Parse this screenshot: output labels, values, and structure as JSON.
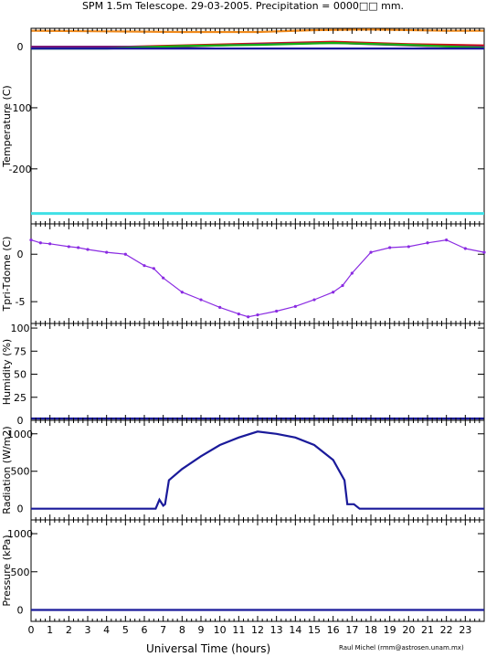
{
  "title": "SPM 1.5m Telescope. 29-03-2005. Precipitation = 0000□□ mm.",
  "xlabel": "Universal Time (hours)",
  "credit": "Raul Michel (rmm@astrosen.unam.mx)",
  "chart_data": [
    {
      "type": "line",
      "ylabel": "Temperature (C)",
      "yticks": [
        0,
        -100,
        -200
      ],
      "ylim": [
        -290,
        30
      ],
      "series": [
        {
          "color": "#f08a1c",
          "x": [
            0,
            4,
            8,
            12,
            15,
            18,
            22,
            24
          ],
          "values": [
            26,
            25,
            24,
            24,
            27,
            28,
            26,
            26
          ]
        },
        {
          "color": "#d01010",
          "x": [
            0,
            4,
            8,
            12,
            16,
            20,
            24
          ],
          "values": [
            -1,
            -1,
            2,
            5,
            8,
            4,
            2
          ]
        },
        {
          "color": "#7a1a7a",
          "x": [
            0,
            8,
            12,
            16,
            21,
            24
          ],
          "values": [
            0,
            0,
            4,
            6,
            1,
            0
          ]
        },
        {
          "color": "#14b014",
          "x": [
            0,
            4,
            8,
            12,
            16,
            20,
            24
          ],
          "values": [
            -3,
            -3,
            1,
            3,
            6,
            3,
            -2
          ]
        },
        {
          "color": "#1a1a9a",
          "x": [
            0,
            24
          ],
          "values": [
            -3,
            -3
          ]
        },
        {
          "color": "#40e0e6",
          "x": [
            0,
            24
          ],
          "values": [
            -273,
            -273
          ]
        }
      ]
    },
    {
      "type": "scatter",
      "ylabel": "Tpri-Tdome (C)",
      "yticks": [
        0,
        -5
      ],
      "ylim": [
        -7.3,
        3.2
      ],
      "series": [
        {
          "color": "#8a2be2",
          "x": [
            0,
            0.5,
            1,
            2,
            2.5,
            3,
            4,
            5,
            6,
            6.5,
            7,
            8,
            9,
            10,
            11,
            11.5,
            12,
            13,
            14,
            15,
            16,
            16.5,
            17,
            18,
            19,
            20,
            21,
            22,
            23,
            24
          ],
          "values": [
            1.5,
            1.2,
            1.1,
            0.8,
            0.7,
            0.5,
            0.2,
            0,
            -1.2,
            -1.5,
            -2.5,
            -4.0,
            -4.8,
            -5.6,
            -6.3,
            -6.6,
            -6.4,
            -6.0,
            -5.5,
            -4.8,
            -4.0,
            -3.3,
            -2.0,
            0.2,
            0.7,
            0.8,
            1.2,
            1.5,
            0.6,
            0.2
          ]
        }
      ]
    },
    {
      "type": "line",
      "ylabel": "Humidity (%)",
      "yticks": [
        0,
        25,
        50,
        75,
        100
      ],
      "ylim": [
        0,
        105
      ],
      "series": [
        {
          "color": "#1a1a9a",
          "x": [
            0,
            24
          ],
          "values": [
            2,
            2
          ]
        }
      ]
    },
    {
      "type": "line",
      "ylabel": "Radiation (W/m2)",
      "yticks": [
        0,
        500,
        1000
      ],
      "ylim": [
        -150,
        1180
      ],
      "series": [
        {
          "color": "#1a1a9a",
          "x": [
            0,
            6.6,
            6.8,
            7.0,
            7.1,
            7.3,
            8,
            9,
            10,
            11,
            12,
            13,
            14,
            15,
            16,
            16.6,
            16.75,
            17.1,
            17.4,
            24
          ],
          "values": [
            0,
            0,
            120,
            40,
            60,
            380,
            530,
            700,
            850,
            950,
            1030,
            1000,
            950,
            850,
            650,
            380,
            60,
            60,
            0,
            0
          ]
        }
      ]
    },
    {
      "type": "line",
      "ylabel": "Pressure (kPa)",
      "yticks": [
        0,
        500,
        1000
      ],
      "ylim": [
        -150,
        1180
      ],
      "series": [
        {
          "color": "#1a1a9a",
          "x": [
            0,
            24
          ],
          "values": [
            0,
            0
          ]
        }
      ]
    }
  ],
  "x_axis": {
    "xlim": [
      0,
      24
    ],
    "ticks": [
      "0",
      "1",
      "2",
      "3",
      "4",
      "5",
      "6",
      "7",
      "8",
      "9",
      "10",
      "11",
      "12",
      "13",
      "14",
      "15",
      "16",
      "17",
      "18",
      "19",
      "20",
      "21",
      "22",
      "23"
    ]
  }
}
